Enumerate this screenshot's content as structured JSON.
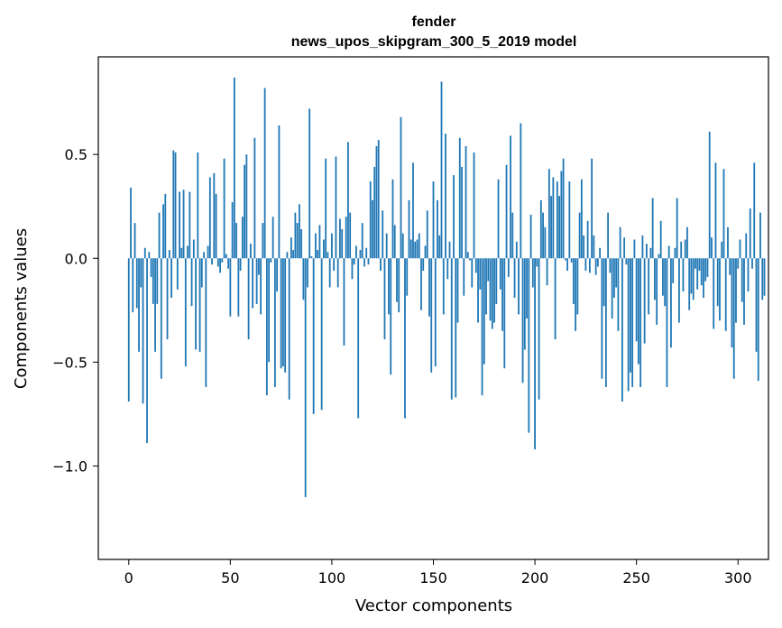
{
  "chart_data": {
    "type": "bar",
    "title": "fender",
    "subtitle": "news_upos_skipgram_300_5_2019 model",
    "xlabel": "Vector components",
    "ylabel": "Components values",
    "xlim": [
      -15,
      315
    ],
    "ylim": [
      -1.45,
      0.97
    ],
    "xticks": [
      0,
      50,
      100,
      150,
      200,
      250,
      300
    ],
    "xtick_labels": [
      "0",
      "50",
      "100",
      "150",
      "200",
      "250",
      "300"
    ],
    "yticks": [
      0.5,
      0.0,
      -0.5,
      -1.0
    ],
    "ytick_labels": [
      "0.5",
      "0.0",
      "−0.5",
      "−1.0"
    ],
    "bar_color": "#1f77b4",
    "grid": false,
    "values": [
      -0.69,
      0.34,
      -0.26,
      0.17,
      -0.24,
      -0.45,
      -0.14,
      -0.7,
      0.05,
      -0.89,
      0.03,
      -0.09,
      -0.22,
      -0.45,
      -0.22,
      0.22,
      -0.58,
      0.26,
      0.31,
      -0.39,
      0.04,
      -0.19,
      0.52,
      0.51,
      -0.15,
      0.32,
      0.05,
      0.33,
      -0.52,
      0.06,
      0.32,
      -0.23,
      0.09,
      -0.44,
      0.51,
      -0.45,
      -0.14,
      0.03,
      -0.62,
      0.06,
      0.39,
      -0.03,
      0.41,
      0.31,
      -0.04,
      -0.07,
      -0.02,
      0.48,
      0.02,
      -0.05,
      -0.28,
      0.27,
      0.87,
      0.17,
      -0.28,
      -0.06,
      0.2,
      0.45,
      0.5,
      -0.39,
      0.07,
      -0.24,
      0.58,
      -0.22,
      -0.08,
      -0.27,
      0.17,
      0.82,
      -0.66,
      -0.5,
      -0.02,
      0.2,
      -0.62,
      -0.16,
      0.64,
      -0.53,
      -0.52,
      -0.55,
      0.03,
      -0.68,
      0.1,
      0.04,
      0.22,
      0.17,
      0.26,
      0.14,
      -0.2,
      -1.15,
      -0.14,
      0.72,
      0.01,
      -0.75,
      0.12,
      0.04,
      0.16,
      -0.73,
      0.09,
      0.48,
      0.03,
      -0.14,
      0.12,
      -0.06,
      0.49,
      -0.14,
      0.19,
      0.14,
      -0.42,
      0.2,
      0.56,
      0.22,
      -0.1,
      -0.03,
      0.06,
      -0.77,
      0.04,
      0.17,
      -0.04,
      0.05,
      -0.03,
      0.37,
      0.28,
      0.44,
      0.54,
      0.57,
      -0.06,
      0.23,
      -0.39,
      0.12,
      -0.27,
      -0.56,
      0.38,
      0.16,
      -0.21,
      -0.26,
      0.68,
      0.12,
      -0.77,
      -0.18,
      0.28,
      0.09,
      0.46,
      0.08,
      0.09,
      0.12,
      -0.25,
      -0.06,
      0.06,
      0.23,
      -0.28,
      -0.55,
      0.37,
      -0.52,
      0.28,
      0.11,
      0.85,
      -0.27,
      0.6,
      -0.1,
      0.08,
      -0.68,
      0.4,
      -0.67,
      -0.31,
      0.58,
      0.44,
      -0.18,
      0.54,
      0.03,
      -0.01,
      -0.14,
      0.51,
      -0.07,
      -0.31,
      -0.15,
      -0.66,
      -0.51,
      -0.27,
      -0.11,
      -0.3,
      -0.34,
      -0.31,
      -0.22,
      0.38,
      -0.15,
      -0.35,
      -0.53,
      0.45,
      -0.09,
      0.59,
      0.22,
      -0.19,
      0.08,
      -0.27,
      0.65,
      -0.6,
      -0.44,
      -0.29,
      -0.84,
      0.21,
      -0.14,
      -0.92,
      -0.04,
      -0.68,
      0.28,
      0.22,
      0.15,
      -0.13,
      0.43,
      0.3,
      0.39,
      -0.39,
      0.37,
      0.3,
      0.42,
      0.48,
      -0.01,
      -0.06,
      0.37,
      -0.02,
      -0.22,
      -0.35,
      -0.27,
      0.22,
      0.38,
      0.11,
      -0.06,
      0.18,
      -0.07,
      0.48,
      0.11,
      -0.08,
      -0.04,
      0.05,
      -0.58,
      -0.23,
      -0.62,
      0.22,
      -0.07,
      -0.29,
      -0.19,
      -0.14,
      -0.35,
      0.15,
      -0.69,
      0.1,
      -0.03,
      -0.64,
      -0.55,
      -0.62,
      0.09,
      -0.4,
      -0.51,
      -0.62,
      0.11,
      -0.41,
      0.07,
      -0.27,
      0.05,
      0.29,
      -0.2,
      -0.32,
      0.02,
      0.18,
      -0.18,
      -0.23,
      -0.62,
      0.06,
      -0.43,
      -0.12,
      0.05,
      0.29,
      -0.31,
      0.08,
      -0.16,
      0.09,
      0.15,
      -0.25,
      -0.17,
      -0.2,
      -0.05,
      -0.15,
      -0.06,
      -0.13,
      -0.19,
      -0.11,
      -0.09,
      0.61,
      0.1,
      -0.34,
      0.46,
      -0.23,
      -0.3,
      0.08,
      0.43,
      -0.35,
      0.15,
      -0.08,
      -0.43,
      -0.58,
      -0.31,
      -0.05,
      0.09,
      -0.21,
      -0.32,
      0.12,
      -0.16,
      0.24,
      -0.05,
      0.46,
      -0.45,
      -0.59,
      0.22,
      -0.2,
      -0.18
    ]
  }
}
